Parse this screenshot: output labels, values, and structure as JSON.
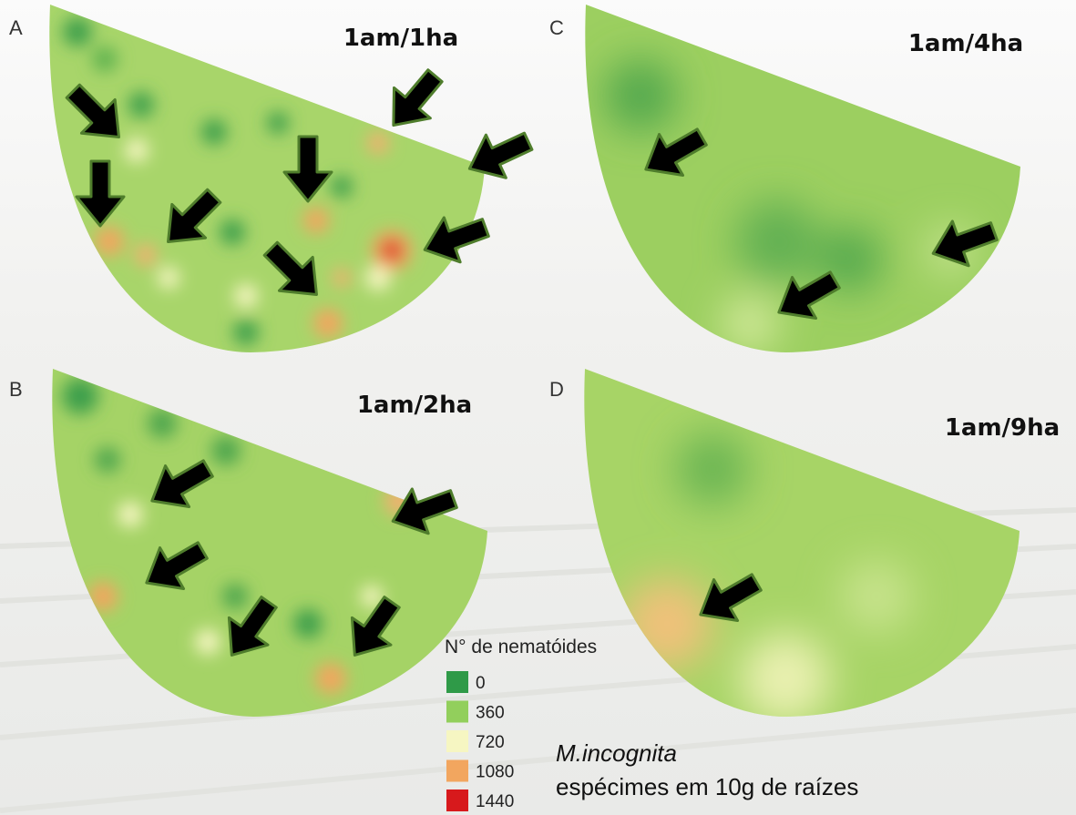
{
  "panels": [
    {
      "letter": "A",
      "title": "1am/1ha"
    },
    {
      "letter": "C",
      "title": "1am/4ha"
    },
    {
      "letter": "B",
      "title": "1am/2ha"
    },
    {
      "letter": "D",
      "title": "1am/9ha"
    }
  ],
  "legend": {
    "title": "N° de nematóides",
    "items": [
      {
        "label": "0",
        "color": "#2f9a48"
      },
      {
        "label": "360",
        "color": "#92cf5c"
      },
      {
        "label": "720",
        "color": "#f6f6c2"
      },
      {
        "label": "1080",
        "color": "#f2a65f"
      },
      {
        "label": "1440",
        "color": "#d7191c"
      }
    ]
  },
  "caption": {
    "species": "M.incognita",
    "unit": "espécimes em 10g de raízes"
  }
}
